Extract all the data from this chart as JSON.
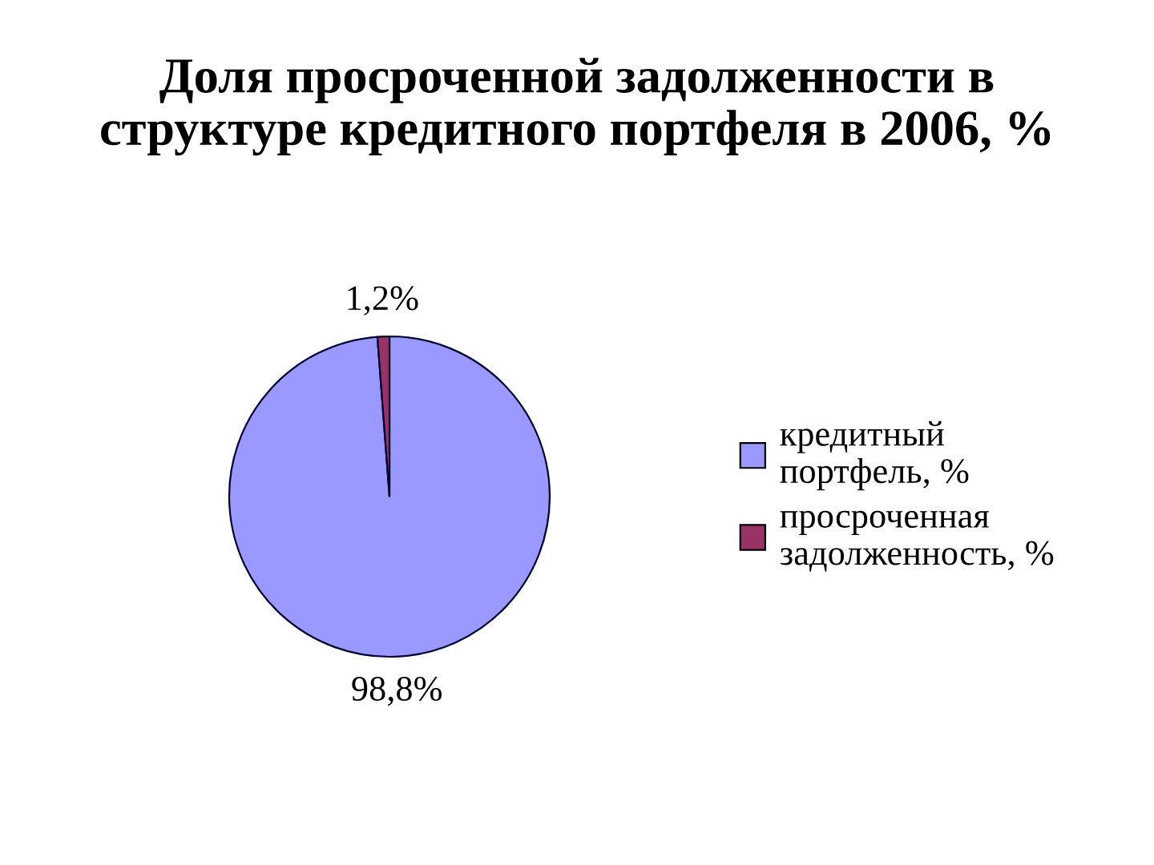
{
  "chart_data": {
    "type": "pie",
    "title": "Доля просроченной задолженности в структуре кредитного портфеля в 2006, %",
    "categories": [
      "кредитный портфель, %",
      "просроченная задолженность, %"
    ],
    "values": [
      98.8,
      1.2
    ],
    "colors": [
      "#9999ff",
      "#993366"
    ],
    "value_labels": [
      "98,8%",
      "1,2%"
    ],
    "legend": "right"
  }
}
